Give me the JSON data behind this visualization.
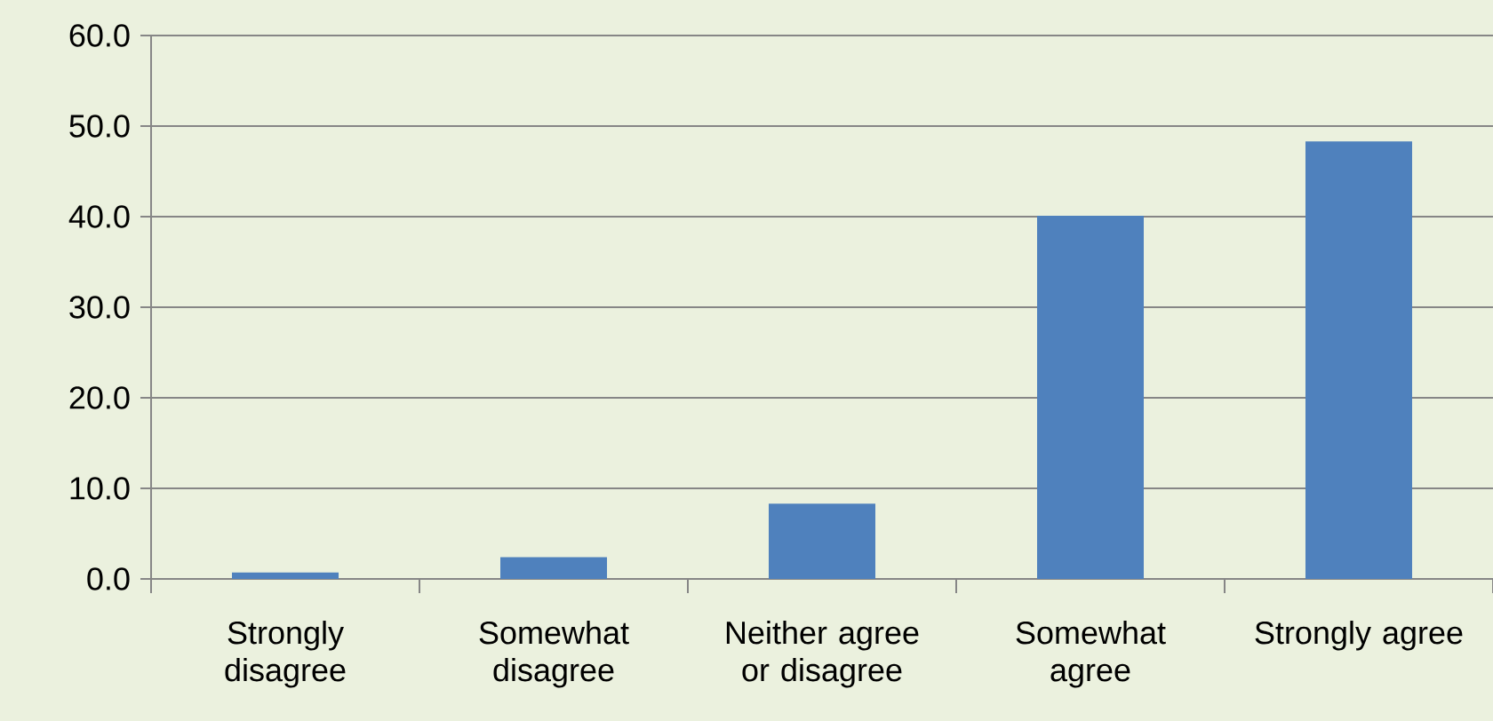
{
  "chart_data": {
    "type": "bar",
    "categories": [
      "Strongly disagree",
      "Somewhat disagree",
      "Neither agree or disagree",
      "Somewhat agree",
      "Strongly agree"
    ],
    "values": [
      0.7,
      2.4,
      8.3,
      40.1,
      48.3
    ],
    "color": "#4f81bd",
    "ylim": [
      0,
      60
    ],
    "yticks": [
      {
        "value": 0,
        "label": "0.0"
      },
      {
        "value": 10,
        "label": "10.0"
      },
      {
        "value": 20,
        "label": "20.0"
      },
      {
        "value": 30,
        "label": "30.0"
      },
      {
        "value": 40,
        "label": "40.0"
      },
      {
        "value": 50,
        "label": "50.0"
      },
      {
        "value": 60,
        "label": "60.0"
      }
    ],
    "grid": "y"
  }
}
